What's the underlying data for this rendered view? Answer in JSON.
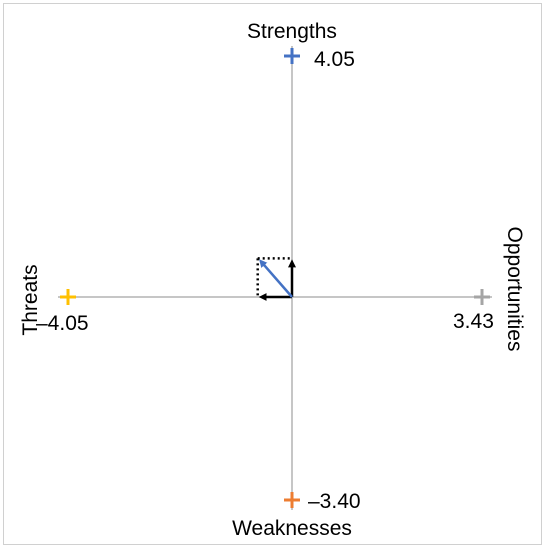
{
  "chart_data": {
    "type": "scatter",
    "title": "",
    "axes": {
      "top": "Strengths",
      "bottom": "Weaknesses",
      "left": "Threats",
      "right": "Opportunities"
    },
    "points": [
      {
        "axis": "Strengths",
        "x": 0,
        "y": 4.05,
        "label": "4.05",
        "color": "#4472C4"
      },
      {
        "axis": "Weaknesses",
        "x": 0,
        "y": -3.4,
        "label": "–3.40",
        "color": "#ED7D31"
      },
      {
        "axis": "Threats",
        "x": -4.05,
        "y": 0,
        "label": "–4.05",
        "color": "#FFC000"
      },
      {
        "axis": "Opportunities",
        "x": 3.43,
        "y": 0,
        "label": "3.43",
        "color": "#A5A5A5"
      }
    ],
    "resultant": {
      "x": -0.62,
      "y": 0.65,
      "color": "#4472C4"
    },
    "components_color": "#000000",
    "xlim": [
      -4.05,
      3.43
    ],
    "ylim": [
      -3.4,
      4.05
    ],
    "grid": false
  }
}
